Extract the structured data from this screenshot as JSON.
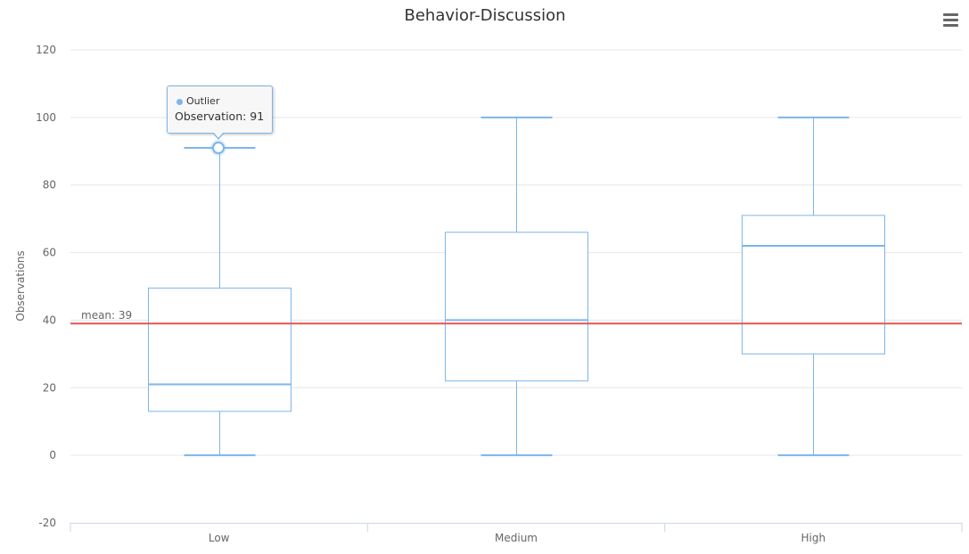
{
  "chart_data": {
    "type": "boxplot",
    "title": "Behavior-Discussion",
    "xlabel": "",
    "ylabel": "Observations",
    "categories": [
      "Low",
      "Medium",
      "High"
    ],
    "ylim": [
      -20,
      120
    ],
    "yticks": [
      -20,
      0,
      20,
      40,
      60,
      80,
      100,
      120
    ],
    "grid": true,
    "series": [
      {
        "boxes": [
          {
            "category": "Low",
            "low": 0,
            "q1": 13,
            "median": 21,
            "q3": 49.5,
            "high": 91
          },
          {
            "category": "Medium",
            "low": 0,
            "q1": 22,
            "median": 40,
            "q3": 66,
            "high": 100
          },
          {
            "category": "High",
            "low": 0,
            "q1": 30,
            "median": 62,
            "q3": 71,
            "high": 100
          }
        ]
      },
      {
        "name": "Outlier",
        "points": [
          {
            "category": "Low",
            "value": 91
          }
        ]
      }
    ],
    "plot_lines": [
      {
        "value": 39,
        "label": "mean: 39",
        "color": "#e05555"
      }
    ],
    "colors": {
      "box": "#7cb5ec",
      "mean_line": "#e05555",
      "grid": "#e6e6e6",
      "axis_text": "#666666"
    }
  },
  "tooltip": {
    "series_name": "Outlier",
    "label": "Observation: 91"
  },
  "menu": {
    "icon": "hamburger-menu-icon"
  }
}
